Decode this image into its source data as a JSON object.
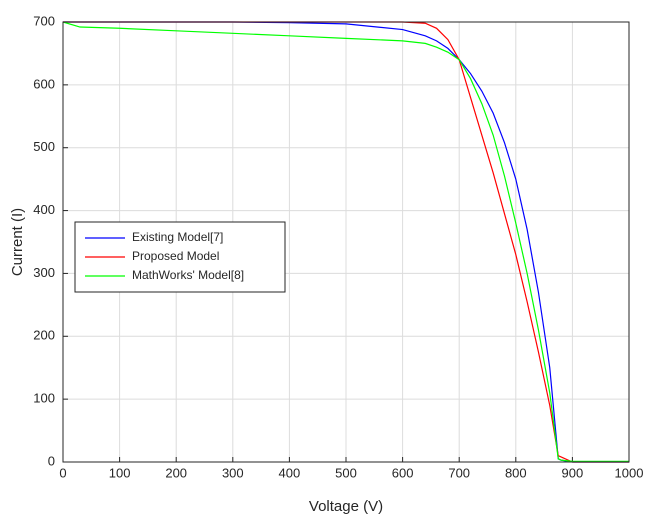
{
  "chart_data": {
    "type": "line",
    "x_label": "Voltage (V)",
    "y_label": "Current (I)",
    "x": [
      0,
      30,
      100,
      200,
      300,
      400,
      500,
      600,
      640,
      660,
      680,
      700,
      720,
      740,
      760,
      780,
      800,
      820,
      840,
      860,
      875,
      880,
      900,
      1000
    ],
    "series": [
      {
        "name": "Existing Model[7]",
        "color": "#0000ff",
        "values": [
          700,
          700,
          700,
          700,
          700,
          699,
          697,
          688,
          678,
          670,
          658,
          640,
          618,
          590,
          555,
          508,
          450,
          370,
          270,
          150,
          5,
          3,
          0,
          0
        ]
      },
      {
        "name": "Proposed Model",
        "color": "#ff0000",
        "values": [
          700,
          700,
          700,
          700,
          700,
          700,
          700,
          700,
          698,
          690,
          672,
          640,
          580,
          520,
          460,
          395,
          330,
          255,
          175,
          90,
          10,
          8,
          0,
          0
        ]
      },
      {
        "name": "MathWorks' Model[8]",
        "color": "#00ff00",
        "values": [
          700,
          692,
          690,
          686,
          682,
          678,
          674,
          670,
          666,
          660,
          652,
          640,
          610,
          570,
          520,
          455,
          380,
          300,
          210,
          110,
          5,
          3,
          1,
          1
        ]
      }
    ],
    "xlim": [
      0,
      1000
    ],
    "xticks": [
      0,
      100,
      200,
      300,
      400,
      500,
      600,
      700,
      800,
      900,
      1000
    ],
    "ylim": [
      0,
      700
    ],
    "yticks": [
      0,
      100,
      200,
      300,
      400,
      500,
      600,
      700
    ],
    "grid": true,
    "legend": "left"
  }
}
